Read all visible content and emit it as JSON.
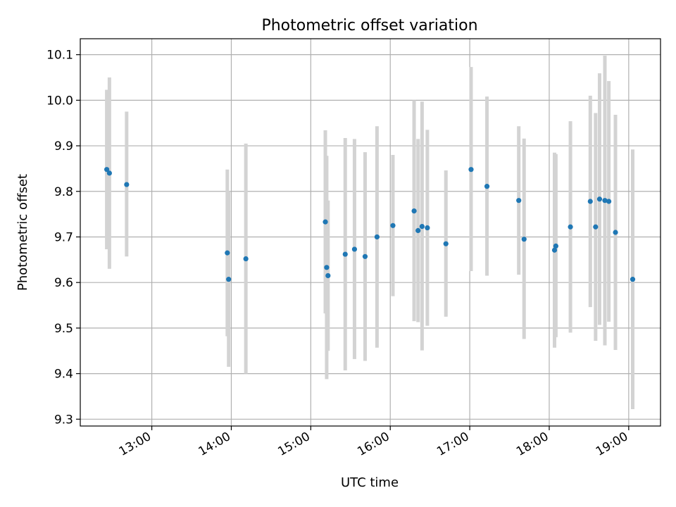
{
  "chart_data": {
    "type": "scatter",
    "title": "Photometric offset variation",
    "xlabel": "UTC time",
    "ylabel": "Photometric offset",
    "x_unit": "UTC time of day (HH:MM)",
    "xlim": [
      "12:06",
      "19:24"
    ],
    "ylim": [
      9.285,
      10.135
    ],
    "xticks": [
      "13:00",
      "14:00",
      "15:00",
      "16:00",
      "17:00",
      "18:00",
      "19:00"
    ],
    "yticks": [
      9.3,
      9.4,
      9.5,
      9.6,
      9.7,
      9.8,
      9.9,
      10.0,
      10.1
    ],
    "ytick_labels": [
      "9.3",
      "9.4",
      "9.5",
      "9.6",
      "9.7",
      "9.8",
      "9.9",
      "10.0",
      "10.1"
    ],
    "grid": true,
    "colors": {
      "points": "#1f77b4",
      "error_bars": "#d3d3d3",
      "grid": "#b0b0b0"
    },
    "points": [
      {
        "x": "12:26",
        "y": 9.848,
        "low": 9.673,
        "high": 10.023
      },
      {
        "x": "12:28",
        "y": 9.84,
        "low": 9.63,
        "high": 10.05
      },
      {
        "x": "12:41",
        "y": 9.815,
        "low": 9.657,
        "high": 9.975
      },
      {
        "x": "13:57",
        "y": 9.665,
        "low": 9.482,
        "high": 9.848
      },
      {
        "x": "13:58",
        "y": 9.607,
        "low": 9.415,
        "high": 9.8
      },
      {
        "x": "14:11",
        "y": 9.652,
        "low": 9.4,
        "high": 9.905
      },
      {
        "x": "15:11",
        "y": 9.733,
        "low": 9.532,
        "high": 9.934
      },
      {
        "x": "15:12",
        "y": 9.633,
        "low": 9.388,
        "high": 9.878
      },
      {
        "x": "15:13",
        "y": 9.615,
        "low": 9.45,
        "high": 9.78
      },
      {
        "x": "15:26",
        "y": 9.662,
        "low": 9.407,
        "high": 9.917
      },
      {
        "x": "15:33",
        "y": 9.673,
        "low": 9.432,
        "high": 9.915
      },
      {
        "x": "15:41",
        "y": 9.657,
        "low": 9.428,
        "high": 9.886
      },
      {
        "x": "15:50",
        "y": 9.7,
        "low": 9.457,
        "high": 9.943
      },
      {
        "x": "16:02",
        "y": 9.725,
        "low": 9.57,
        "high": 9.88
      },
      {
        "x": "16:18",
        "y": 9.757,
        "low": 9.515,
        "high": 10.0
      },
      {
        "x": "16:21",
        "y": 9.714,
        "low": 9.513,
        "high": 9.915
      },
      {
        "x": "16:24",
        "y": 9.723,
        "low": 9.451,
        "high": 9.997
      },
      {
        "x": "16:28",
        "y": 9.72,
        "low": 9.505,
        "high": 9.935
      },
      {
        "x": "16:42",
        "y": 9.685,
        "low": 9.525,
        "high": 9.846
      },
      {
        "x": "17:01",
        "y": 9.848,
        "low": 9.625,
        "high": 10.073
      },
      {
        "x": "17:13",
        "y": 9.811,
        "low": 9.615,
        "high": 10.008
      },
      {
        "x": "17:37",
        "y": 9.78,
        "low": 9.617,
        "high": 9.943
      },
      {
        "x": "17:41",
        "y": 9.695,
        "low": 9.476,
        "high": 9.916
      },
      {
        "x": "18:04",
        "y": 9.671,
        "low": 9.457,
        "high": 9.885
      },
      {
        "x": "18:05",
        "y": 9.68,
        "low": 9.48,
        "high": 9.882
      },
      {
        "x": "18:16",
        "y": 9.722,
        "low": 9.49,
        "high": 9.954
      },
      {
        "x": "18:31",
        "y": 9.778,
        "low": 9.546,
        "high": 10.01
      },
      {
        "x": "18:35",
        "y": 9.722,
        "low": 9.472,
        "high": 9.972
      },
      {
        "x": "18:38",
        "y": 9.783,
        "low": 9.507,
        "high": 10.059
      },
      {
        "x": "18:42",
        "y": 9.78,
        "low": 9.462,
        "high": 10.098
      },
      {
        "x": "18:45",
        "y": 9.778,
        "low": 9.514,
        "high": 10.042
      },
      {
        "x": "18:50",
        "y": 9.71,
        "low": 9.452,
        "high": 9.968
      },
      {
        "x": "19:03",
        "y": 9.607,
        "low": 9.322,
        "high": 9.892
      }
    ]
  }
}
